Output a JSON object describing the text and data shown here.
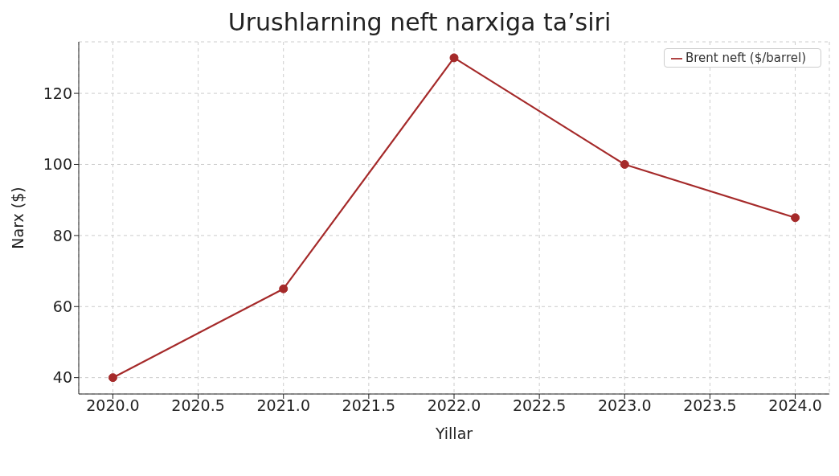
{
  "chart_data": {
    "type": "line",
    "title": "Urushlarning neft narxiga ta’siri",
    "xlabel": "Yillar",
    "ylabel": "Narx ($)",
    "x": [
      2020,
      2021,
      2022,
      2023,
      2024
    ],
    "series": [
      {
        "name": "Brent neft ($/barrel)",
        "color": "#a52a2a",
        "values": [
          40,
          65,
          130,
          100,
          85
        ]
      }
    ],
    "xlim": [
      2019.8,
      2024.2
    ],
    "xticks": [
      {
        "value": 2020,
        "label": "2020.0"
      },
      {
        "value": 2020.5,
        "label": "2020.5"
      },
      {
        "value": 2021,
        "label": "2021.0"
      },
      {
        "value": 2021.5,
        "label": "2021.5"
      },
      {
        "value": 2022,
        "label": "2022.0"
      },
      {
        "value": 2022.5,
        "label": "2022.5"
      },
      {
        "value": 2023,
        "label": "2023.0"
      },
      {
        "value": 2023.5,
        "label": "2023.5"
      },
      {
        "value": 2024,
        "label": "2024.0"
      }
    ],
    "ylim": [
      35.4,
      134.5
    ],
    "yticks": [
      40,
      60,
      80,
      100,
      120
    ],
    "grid": true,
    "legend": "top right",
    "marker": "circle",
    "line_style": "solid"
  }
}
